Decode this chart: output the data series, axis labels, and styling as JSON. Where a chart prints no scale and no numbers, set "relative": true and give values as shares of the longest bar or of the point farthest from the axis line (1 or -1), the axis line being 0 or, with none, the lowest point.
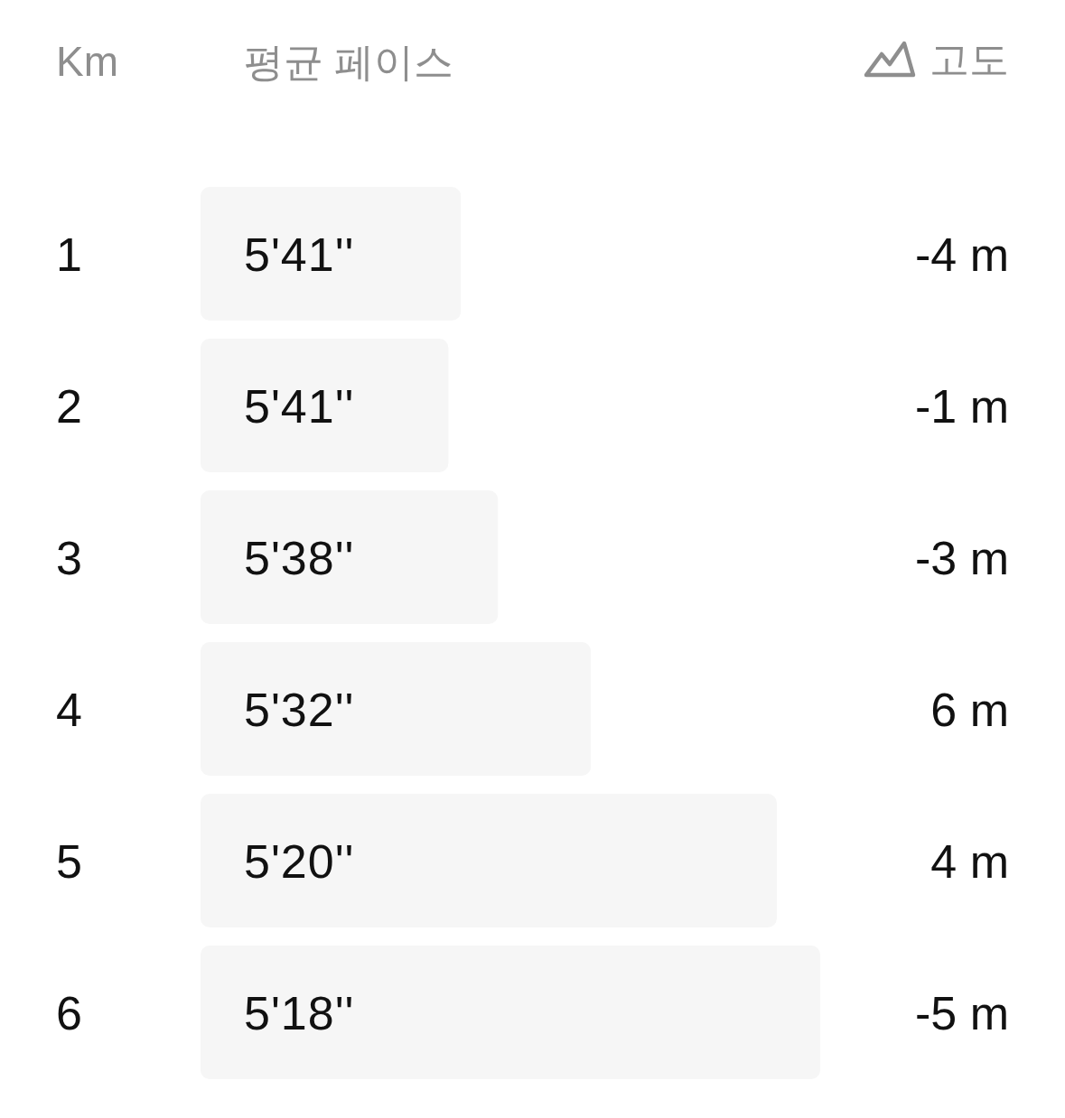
{
  "chart_data": {
    "type": "bar",
    "orientation": "horizontal",
    "relative": true,
    "ylabel": "Km",
    "xlabel": "평균 페이스",
    "y2label": "고도",
    "categories": [
      "1",
      "2",
      "3",
      "4",
      "5",
      "6"
    ],
    "values": [
      0.42,
      0.4,
      0.48,
      0.63,
      0.93,
      1
    ],
    "color": "#f6f6f6",
    "annotations": [
      "5'41''",
      "-4 m",
      "5'41''",
      "-1 m",
      "5'38''",
      "-3 m",
      "5'32''",
      "6 m",
      "5'20''",
      "4 m",
      "5'18''",
      "-5 m"
    ]
  }
}
